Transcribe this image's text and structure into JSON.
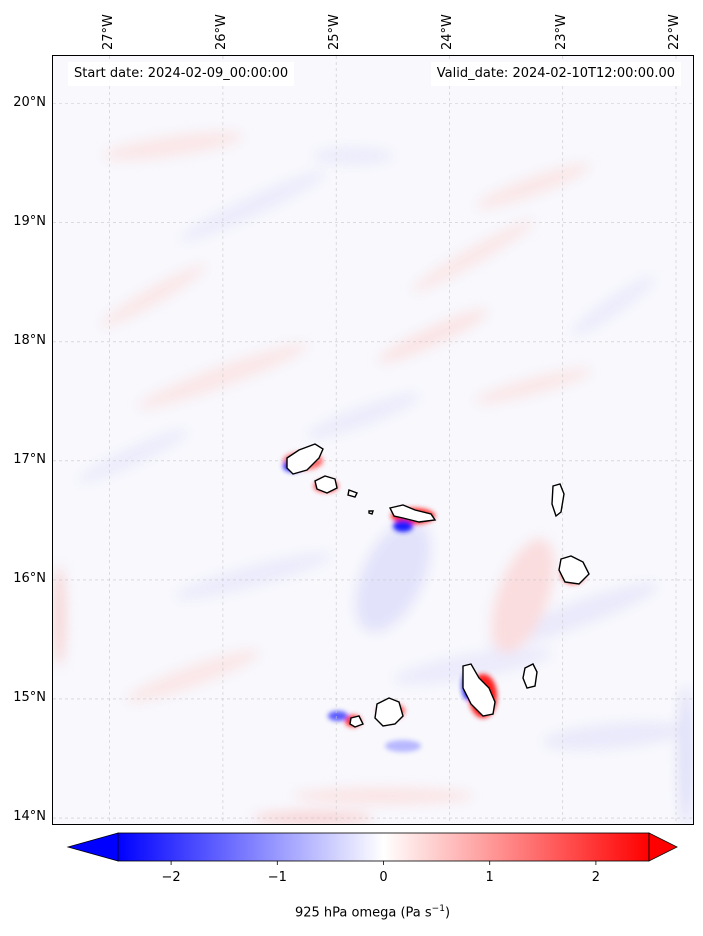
{
  "map": {
    "start_label": "Start date: 2024-02-09_00:00:00",
    "valid_label": "Valid_date: 2024-02-10T12:00:00.00",
    "extent": {
      "lon_min": -27.5,
      "lon_max": -21.85,
      "lat_min": 13.95,
      "lat_max": 20.4
    },
    "lon_ticks": [
      {
        "value": -27,
        "label": "27°W"
      },
      {
        "value": -26,
        "label": "26°W"
      },
      {
        "value": -25,
        "label": "25°W"
      },
      {
        "value": -24,
        "label": "24°W"
      },
      {
        "value": -23,
        "label": "23°W"
      },
      {
        "value": -22,
        "label": "22°W"
      }
    ],
    "lat_ticks": [
      {
        "value": 20,
        "label": "20°N"
      },
      {
        "value": 19,
        "label": "19°N"
      },
      {
        "value": 18,
        "label": "18°N"
      },
      {
        "value": 17,
        "label": "17°N"
      },
      {
        "value": 16,
        "label": "16°N"
      },
      {
        "value": 15,
        "label": "15°N"
      },
      {
        "value": 14,
        "label": "14°N"
      }
    ],
    "gridlines": true,
    "colorbar": {
      "label": "925 hPa omega (Pa s",
      "label_sup": "−1",
      "label_end": ")",
      "min": -2.5,
      "max": 2.5,
      "ticks": [
        {
          "value": -2,
          "label": "−2"
        },
        {
          "value": -1,
          "label": "−1"
        },
        {
          "value": 0,
          "label": "0"
        },
        {
          "value": 1,
          "label": "1"
        },
        {
          "value": 2,
          "label": "2"
        }
      ],
      "colormap": "bwr",
      "extend": "both"
    }
  }
}
